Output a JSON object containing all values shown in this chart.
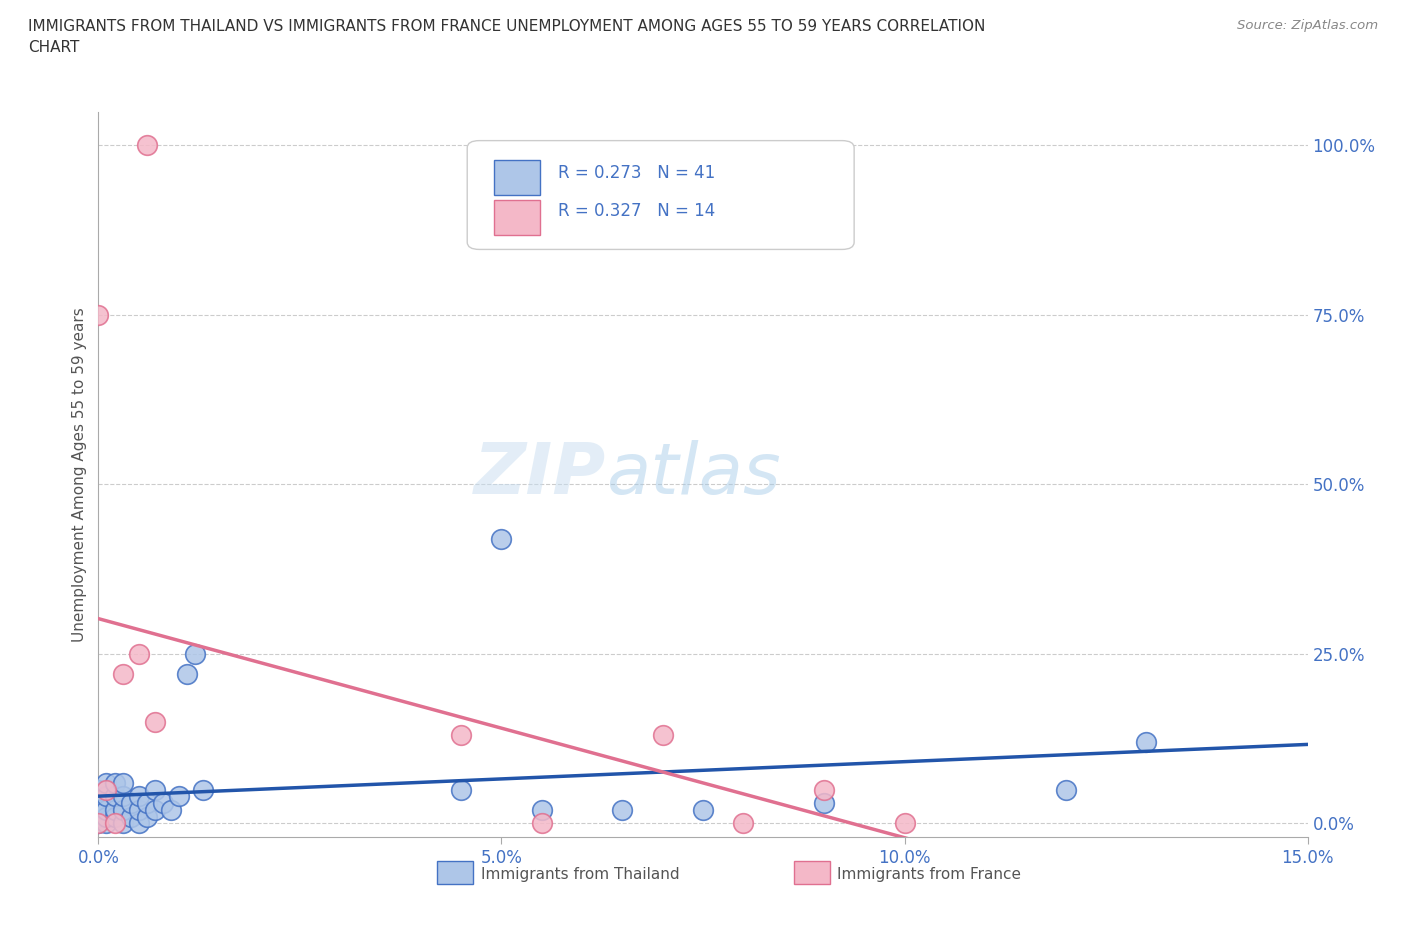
{
  "title": "IMMIGRANTS FROM THAILAND VS IMMIGRANTS FROM FRANCE UNEMPLOYMENT AMONG AGES 55 TO 59 YEARS CORRELATION\nCHART",
  "source": "Source: ZipAtlas.com",
  "ylabel": "Unemployment Among Ages 55 to 59 years",
  "xlim": [
    0.0,
    0.15
  ],
  "ylim": [
    -0.02,
    1.05
  ],
  "xticks": [
    0.0,
    0.05,
    0.1,
    0.15
  ],
  "xticklabels": [
    "0.0%",
    "5.0%",
    "10.0%",
    "15.0%"
  ],
  "yticks": [
    0.0,
    0.25,
    0.5,
    0.75,
    1.0
  ],
  "yticklabels": [
    "0.0%",
    "25.0%",
    "50.0%",
    "75.0%",
    "100.0%"
  ],
  "thailand_color": "#aec6e8",
  "thailand_edge": "#4472c4",
  "france_color": "#f4b8c8",
  "france_edge": "#e07090",
  "trendline_thailand_color": "#2255aa",
  "trendline_france_color": "#e07090",
  "trendline_dashed_color": "#bbbbbb",
  "R_thailand": 0.273,
  "N_thailand": 41,
  "R_france": 0.327,
  "N_france": 14,
  "legend_text_color": "#4472c4",
  "watermark": "ZIPatlas",
  "thailand_x": [
    0.0,
    0.0,
    0.0,
    0.0,
    0.0,
    0.001,
    0.001,
    0.001,
    0.001,
    0.001,
    0.002,
    0.002,
    0.002,
    0.002,
    0.003,
    0.003,
    0.003,
    0.003,
    0.004,
    0.004,
    0.005,
    0.005,
    0.005,
    0.006,
    0.006,
    0.007,
    0.007,
    0.008,
    0.009,
    0.01,
    0.011,
    0.012,
    0.013,
    0.045,
    0.05,
    0.055,
    0.065,
    0.075,
    0.09,
    0.12,
    0.13
  ],
  "thailand_y": [
    0.0,
    0.01,
    0.02,
    0.03,
    0.05,
    0.0,
    0.01,
    0.02,
    0.04,
    0.06,
    0.01,
    0.02,
    0.04,
    0.06,
    0.0,
    0.02,
    0.04,
    0.06,
    0.01,
    0.03,
    0.0,
    0.02,
    0.04,
    0.01,
    0.03,
    0.02,
    0.05,
    0.03,
    0.02,
    0.04,
    0.22,
    0.25,
    0.05,
    0.05,
    0.42,
    0.02,
    0.02,
    0.02,
    0.03,
    0.05,
    0.12
  ],
  "france_x": [
    0.0,
    0.0,
    0.001,
    0.002,
    0.003,
    0.005,
    0.006,
    0.007,
    0.045,
    0.055,
    0.07,
    0.08,
    0.09,
    0.1
  ],
  "france_y": [
    0.0,
    0.75,
    0.05,
    0.0,
    0.22,
    0.25,
    1.0,
    0.15,
    0.13,
    0.0,
    0.13,
    0.0,
    0.05,
    0.0
  ]
}
